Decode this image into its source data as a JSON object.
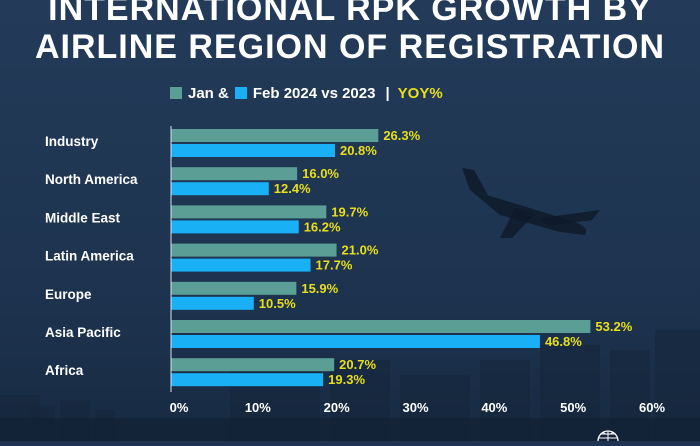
{
  "title": {
    "line1": "INTERNATIONAL RPK GROWTH BY",
    "line2": "AIRLINE REGION OF REGISTRATION"
  },
  "legend": {
    "jan_label": "Jan &",
    "feb_label": "Feb 2024 vs 2023",
    "separator": "|",
    "yoy_label": "YOY%"
  },
  "colors": {
    "background": "#1f3450",
    "jan": "#5b9e96",
    "feb": "#1ab0f5",
    "value_label": "#e8df1a",
    "text": "#ffffff"
  },
  "chart_data": {
    "type": "bar",
    "orientation": "horizontal",
    "categories": [
      "Industry",
      "North America",
      "Middle East",
      "Latin America",
      "Europe",
      "Asia Pacific",
      "Africa"
    ],
    "series": [
      {
        "name": "Jan",
        "values": [
          26.3,
          16.0,
          19.7,
          21.0,
          15.9,
          53.2,
          20.7
        ]
      },
      {
        "name": "Feb 2024 vs 2023",
        "values": [
          20.8,
          12.4,
          16.2,
          17.7,
          10.5,
          46.8,
          19.3
        ]
      }
    ],
    "value_labels": [
      [
        "26.3%",
        "16.0%",
        "19.7%",
        "21.0%",
        "15.9%",
        "53.2%",
        "20.7%"
      ],
      [
        "20.8%",
        "12.4%",
        "16.2%",
        "17.7%",
        "10.5%",
        "46.8%",
        "19.3%"
      ]
    ],
    "xlim": [
      0,
      60
    ],
    "xticks": [
      "0%",
      "10%",
      "20%",
      "30%",
      "40%",
      "50%",
      "60%"
    ],
    "xlabel": "",
    "ylabel": "",
    "grid": false,
    "legend_position": "top"
  }
}
